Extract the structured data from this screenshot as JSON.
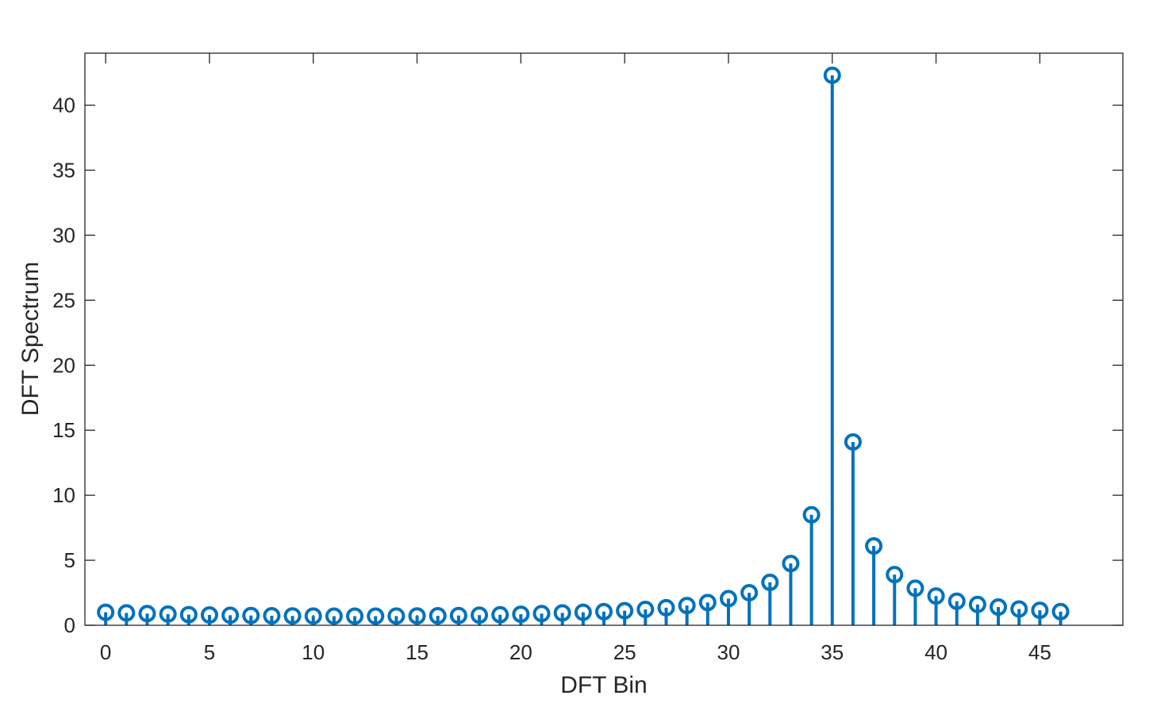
{
  "chart_data": {
    "type": "stem",
    "xlabel": "DFT Bin",
    "ylabel": "DFT Spectrum",
    "xlim": [
      -1,
      49
    ],
    "ylim": [
      0,
      44
    ],
    "xticks": [
      0,
      5,
      10,
      15,
      20,
      25,
      30,
      35,
      40,
      45
    ],
    "yticks": [
      0,
      5,
      10,
      15,
      20,
      25,
      30,
      35,
      40
    ],
    "grid": false,
    "box": true,
    "color": "#0072BD",
    "x": [
      0,
      1,
      2,
      3,
      4,
      5,
      6,
      7,
      8,
      9,
      10,
      11,
      12,
      13,
      14,
      15,
      16,
      17,
      18,
      19,
      20,
      21,
      22,
      23,
      24,
      25,
      26,
      27,
      28,
      29,
      30,
      31,
      32,
      33,
      34,
      35,
      36,
      37,
      38,
      39,
      40,
      41,
      42,
      43,
      44,
      45,
      46
    ],
    "values": [
      1.0,
      0.95,
      0.9,
      0.86,
      0.82,
      0.79,
      0.77,
      0.75,
      0.73,
      0.72,
      0.71,
      0.7,
      0.7,
      0.7,
      0.71,
      0.72,
      0.73,
      0.75,
      0.78,
      0.81,
      0.85,
      0.9,
      0.95,
      1.0,
      1.05,
      1.12,
      1.22,
      1.35,
      1.52,
      1.75,
      2.05,
      2.5,
      3.3,
      4.75,
      8.5,
      42.3,
      14.1,
      6.1,
      3.9,
      2.85,
      2.25,
      1.85,
      1.6,
      1.4,
      1.25,
      1.15,
      1.05
    ]
  }
}
